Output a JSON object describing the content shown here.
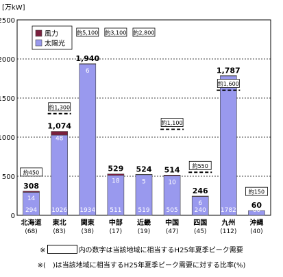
{
  "chart_data": {
    "type": "bar",
    "unit": "[万kW]",
    "ylim": [
      0,
      2500
    ],
    "yticks": [
      0,
      500,
      1000,
      1500,
      2000,
      2500
    ],
    "grid": true,
    "legend": {
      "placement": "top-left",
      "items": [
        "風力",
        "太陽光"
      ]
    },
    "colors": {
      "solar": "#9999ee",
      "wind": "#7a1f3d",
      "demand_line": "#000000"
    },
    "categories": [
      {
        "name": "北海道",
        "ratio": "(68)"
      },
      {
        "name": "東北",
        "ratio": "(83)"
      },
      {
        "name": "関東",
        "ratio": "(38)"
      },
      {
        "name": "中部",
        "ratio": "(17)"
      },
      {
        "name": "近畿",
        "ratio": "(19)"
      },
      {
        "name": "中国",
        "ratio": "(47)"
      },
      {
        "name": "四国",
        "ratio": "(45)"
      },
      {
        "name": "九州",
        "ratio": "(112)"
      },
      {
        "name": "沖縄",
        "ratio": "(40)"
      }
    ],
    "series": [
      {
        "name": "太陽光",
        "values": [
          294,
          1026,
          1934,
          511,
          519,
          505,
          240,
          1782,
          60
        ]
      },
      {
        "name": "風力",
        "values": [
          14,
          48,
          6,
          18,
          5,
          10,
          6,
          5,
          0
        ]
      }
    ],
    "totals": [
      "308",
      "1,074",
      "1,940",
      "529",
      "524",
      "514",
      "246",
      "1,787",
      "60"
    ],
    "demand": [
      {
        "label": "約450",
        "value": 450,
        "line": false
      },
      {
        "label": "約1,300",
        "value": 1300,
        "line": true
      },
      {
        "label": "約5,100",
        "value": 5100,
        "line": false
      },
      {
        "label": "約3,100",
        "value": 3100,
        "line": false
      },
      {
        "label": "約2,800",
        "value": 2800,
        "line": false
      },
      {
        "label": "約1,100",
        "value": 1100,
        "line": true
      },
      {
        "label": "約550",
        "value": 550,
        "line": true
      },
      {
        "label": "約1,600",
        "value": 1600,
        "line": true
      },
      {
        "label": "約150",
        "value": 150,
        "line": false
      }
    ]
  },
  "notes": {
    "note1_prefix": "※",
    "note1_suffix": "内の数字は当該地域に相当するH25年夏季ピーク需要",
    "note2": "※(　)は当該地域に相当するH25年夏季ピーク需要に対する比率(%)"
  }
}
